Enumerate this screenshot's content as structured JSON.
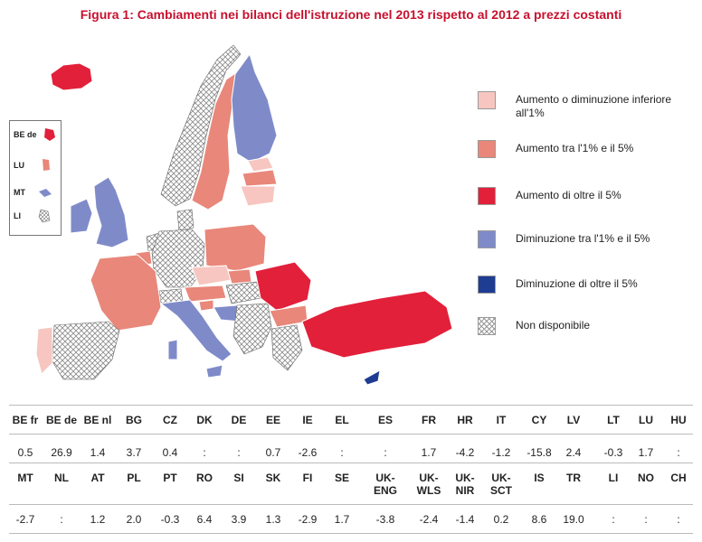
{
  "title": "Figura 1: Cambiamenti nei bilanci dell'istruzione nel 2013 rispetto al 2012 a prezzi costanti",
  "colors": {
    "light_pink": "#f7c6c0",
    "salmon": "#e8877a",
    "red": "#e2203a",
    "light_blue": "#7f8bc9",
    "dark_blue": "#1f3c93",
    "na_hatch": "#9a9a9a"
  },
  "inset_labels": [
    "BE de",
    "LU",
    "MT",
    "LI"
  ],
  "legend": [
    {
      "label": "Aumento o diminuzione inferiore all'1%",
      "color": "light_pink"
    },
    {
      "label": "Aumento tra l'1% e il 5%",
      "color": "salmon"
    },
    {
      "label": "Aumento di oltre il 5%",
      "color": "red"
    },
    {
      "label": "Diminuzione tra l'1% e il 5%",
      "color": "light_blue"
    },
    {
      "label": "Diminuzione di oltre il 5%",
      "color": "dark_blue"
    },
    {
      "label": "Non disponibile",
      "color": "hatch"
    }
  ],
  "table_rows": [
    {
      "codes": [
        "BE fr",
        "BE de",
        "BE nl",
        "BG",
        "CZ",
        "DK",
        "DE",
        "EE",
        "IE",
        "EL",
        "ES",
        "FR",
        "HR",
        "IT",
        "CY",
        "LV",
        "LT",
        "LU",
        "HU"
      ],
      "values": [
        "0.5",
        "26.9",
        "1.4",
        "3.7",
        "0.4",
        ":",
        ":",
        "0.7",
        "-2.6",
        ":",
        ":",
        "1.7",
        "-4.2",
        "-1.2",
        "-15.8",
        "2.4",
        "-0.3",
        "1.7",
        ":"
      ]
    },
    {
      "codes": [
        "MT",
        "NL",
        "AT",
        "PL",
        "PT",
        "RO",
        "SI",
        "SK",
        "FI",
        "SE",
        "UK-\nENG",
        "UK-\nWLS",
        "UK-\nNIR",
        "UK-\nSCT",
        "IS",
        "TR",
        "LI",
        "NO",
        "CH"
      ],
      "values": [
        "-2.7",
        ":",
        "1.2",
        "2.0",
        "-0.3",
        "6.4",
        "3.9",
        "1.3",
        "-2.9",
        "1.7",
        "-3.8",
        "-2.4",
        "-1.4",
        "0.2",
        "8.6",
        "19.0",
        ":",
        ":",
        ":"
      ]
    }
  ]
}
